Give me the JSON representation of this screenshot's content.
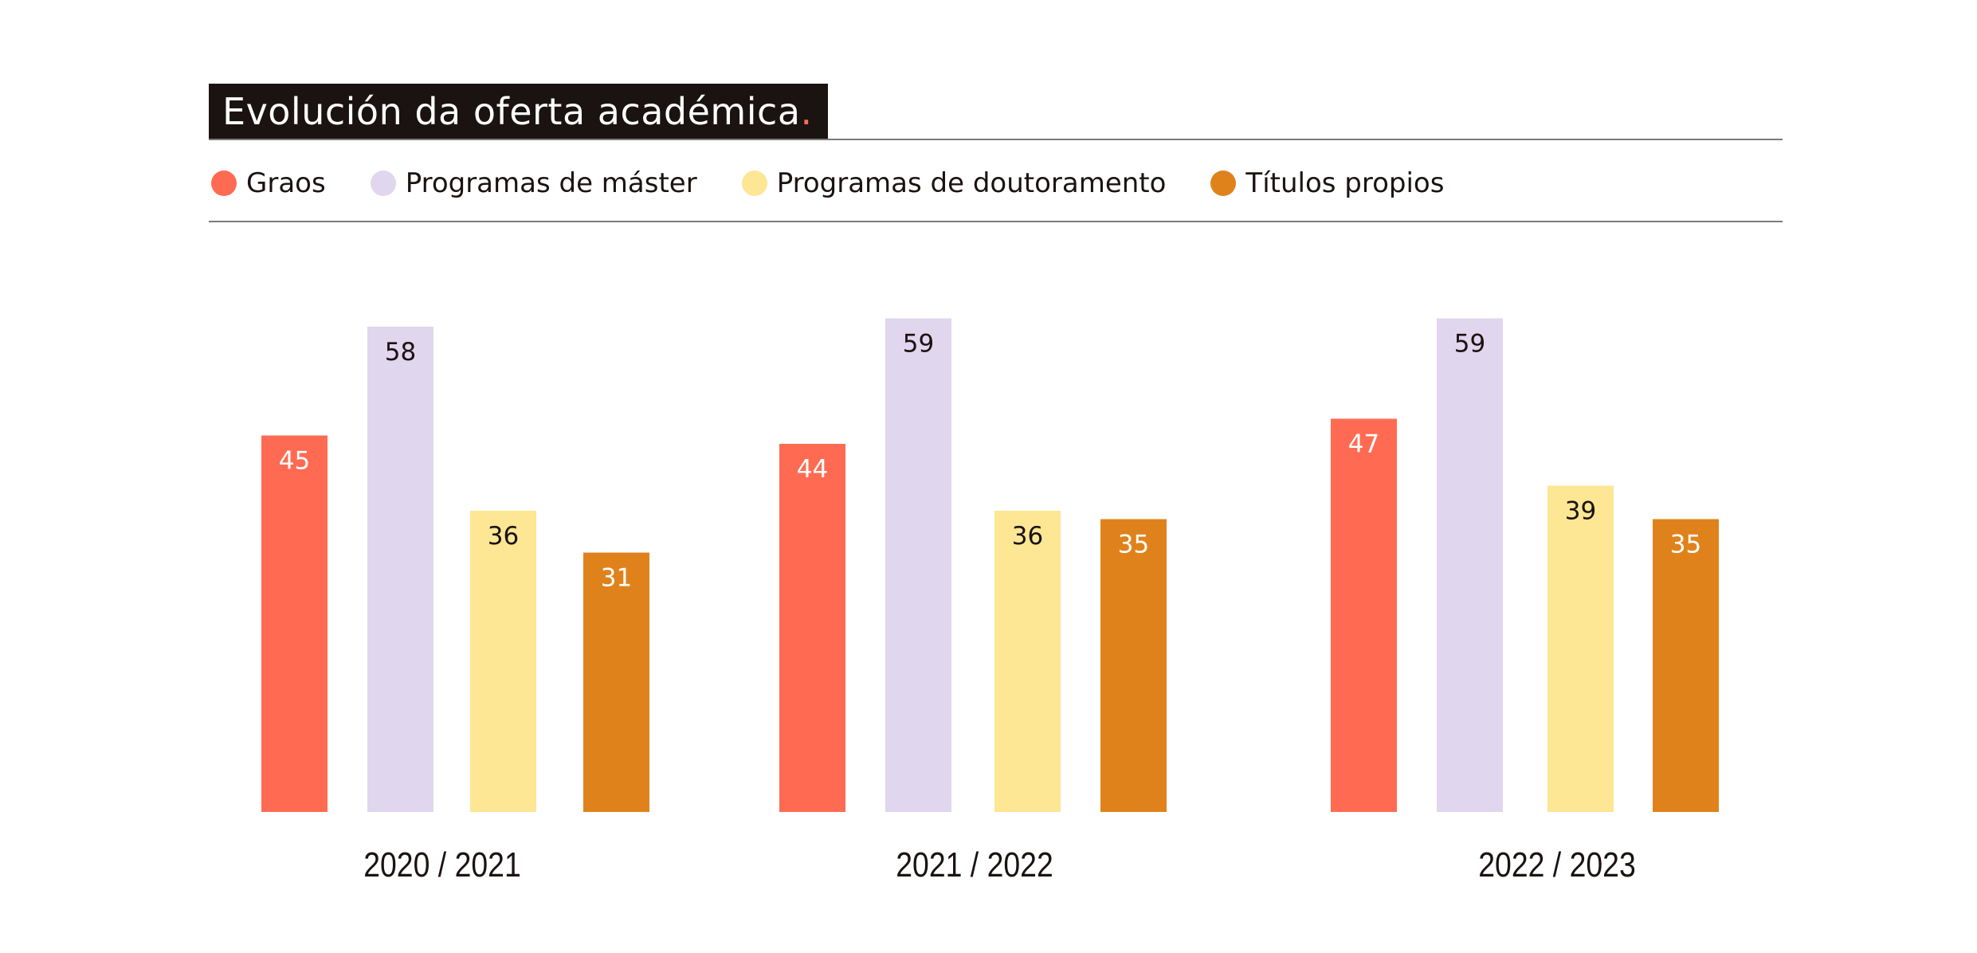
{
  "header": {
    "title": "Evolución da oferta académica",
    "title_dot": "."
  },
  "colors": {
    "graos": "#ff6b52",
    "master": "#e0d6ed",
    "doutoramento": "#fde694",
    "titulos": "#e0821c",
    "title_bg": "#1a1311"
  },
  "chart_data": {
    "type": "bar",
    "title": "Evolución da oferta académica",
    "categories": [
      "2020 / 2021",
      "2021 / 2022",
      "2022 / 2023"
    ],
    "series": [
      {
        "name": "Graos",
        "values": [
          45,
          44,
          47
        ],
        "color": "#ff6b52",
        "label_color": "#ffffff"
      },
      {
        "name": "Programas de máster",
        "values": [
          58,
          59,
          59
        ],
        "color": "#e0d6ed",
        "label_color": "#1a1311"
      },
      {
        "name": "Programas de doutoramento",
        "values": [
          36,
          36,
          39
        ],
        "color": "#fde694",
        "label_color": "#1a1311"
      },
      {
        "name": "Títulos propios",
        "values": [
          31,
          35,
          35
        ],
        "color": "#e0821c",
        "label_color": "#ffffff"
      }
    ],
    "legend_position": "top-left",
    "xlabel": "",
    "ylabel": "",
    "grid": false
  }
}
